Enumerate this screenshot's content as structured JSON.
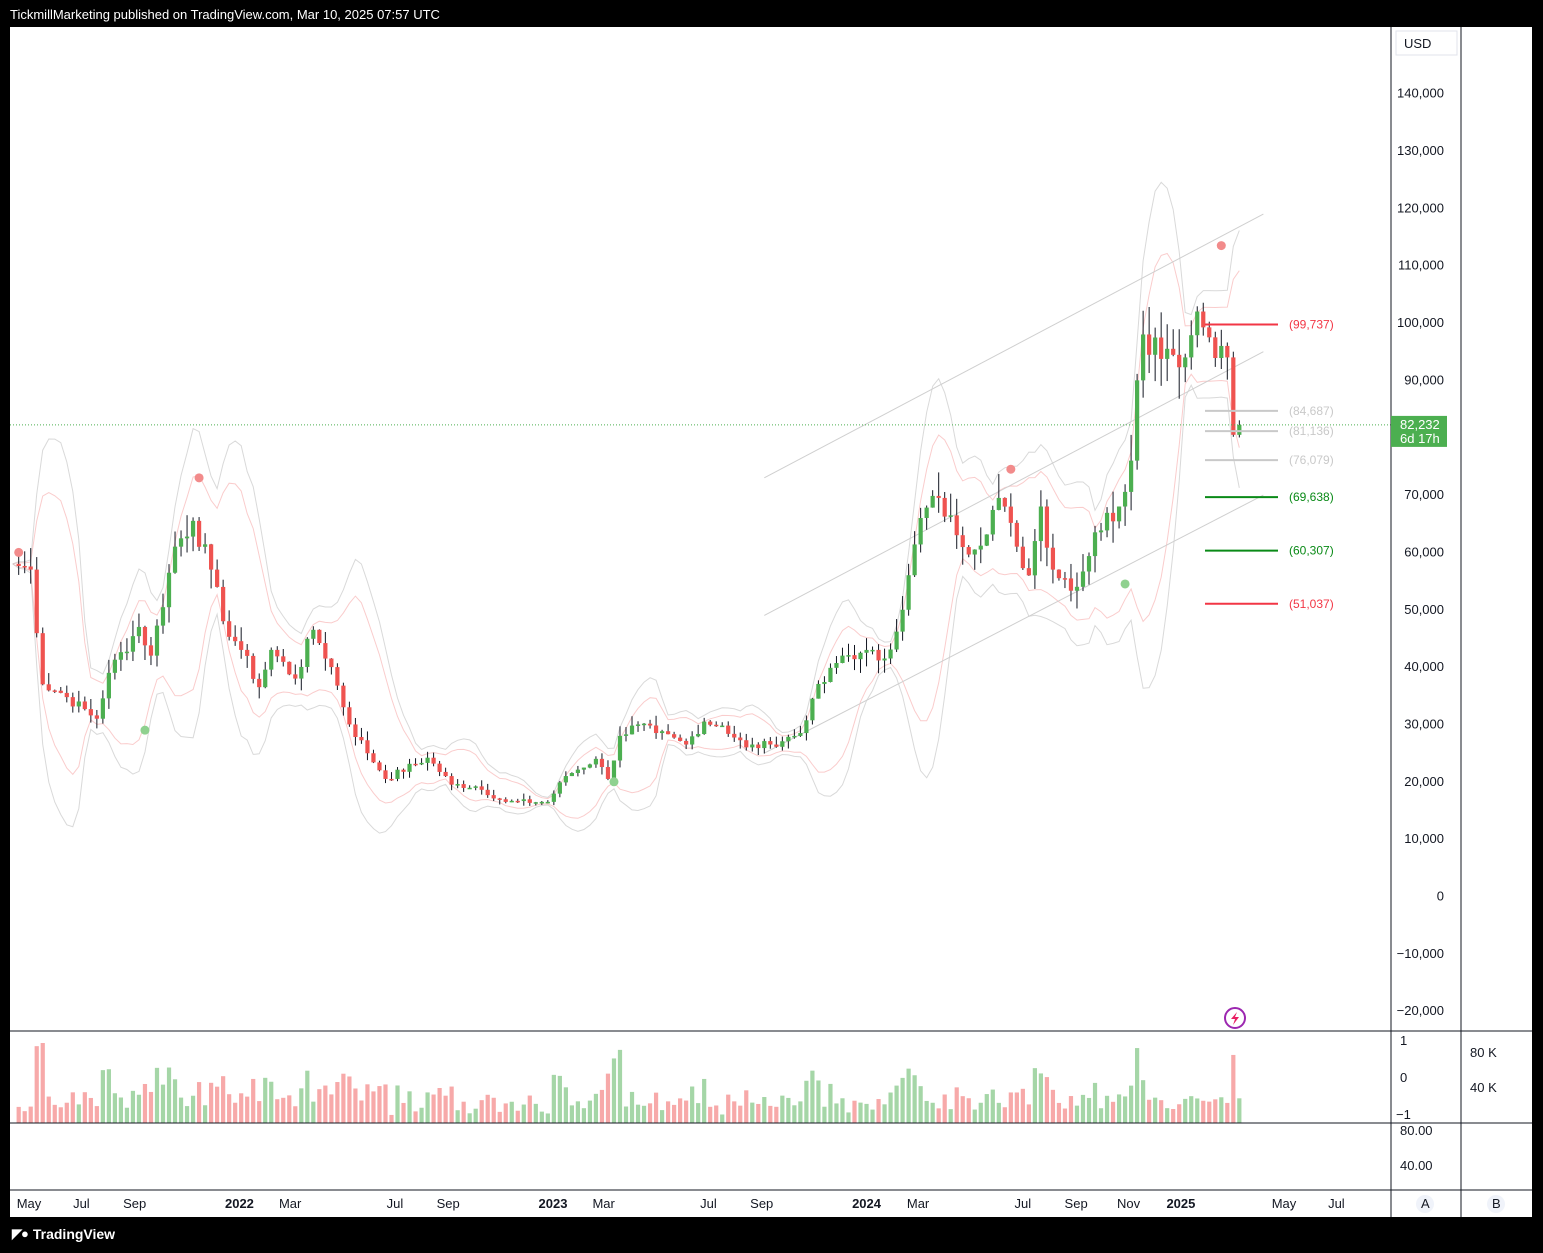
{
  "header": {
    "publish_line": "TickmillMarketing published on TradingView.com, Mar 10, 2025 07:57 UTC"
  },
  "footer": {
    "brand": "TradingView"
  },
  "currency_badge": "USD",
  "last_price": {
    "value": "82,232",
    "countdown": "6d 17h"
  },
  "scale_buttons": {
    "a": "A",
    "b": "B"
  },
  "volume_scale": {
    "left": [
      "1",
      "0",
      "−1"
    ],
    "right": [
      "80 K",
      "40 K"
    ]
  },
  "osc_scale": [
    "80.00",
    "40.00"
  ],
  "colors": {
    "up": "#4caf50",
    "down": "#ef5350",
    "level_red": "#f23645",
    "level_green": "#0a8a17",
    "level_grey": "#c9c9c9"
  },
  "chart_data": {
    "type": "candlestick",
    "symbol_currency": "USD",
    "ylim": [
      -25000,
      150000
    ],
    "y_ticks": [
      140000,
      130000,
      120000,
      110000,
      100000,
      90000,
      80000,
      70000,
      60000,
      50000,
      40000,
      30000,
      20000,
      10000,
      0,
      -10000,
      -20000
    ],
    "y_tick_labels": [
      "140,000",
      "130,000",
      "120,000",
      "110,000",
      "100,000",
      "90,000",
      "",
      "70,000",
      "60,000",
      "50,000",
      "40,000",
      "30,000",
      "20,000",
      "10,000",
      "0",
      "−10,000",
      "−20,000"
    ],
    "x_ticks": [
      {
        "label": "May",
        "date": "2021-05-01",
        "bold": false
      },
      {
        "label": "Jul",
        "date": "2021-07-01",
        "bold": false
      },
      {
        "label": "Sep",
        "date": "2021-09-01",
        "bold": false
      },
      {
        "label": "2022",
        "date": "2022-01-01",
        "bold": true
      },
      {
        "label": "Mar",
        "date": "2022-03-01",
        "bold": false
      },
      {
        "label": "Jul",
        "date": "2022-07-01",
        "bold": false
      },
      {
        "label": "Sep",
        "date": "2022-09-01",
        "bold": false
      },
      {
        "label": "2023",
        "date": "2023-01-01",
        "bold": true
      },
      {
        "label": "Mar",
        "date": "2023-03-01",
        "bold": false
      },
      {
        "label": "Jul",
        "date": "2023-07-01",
        "bold": false
      },
      {
        "label": "Sep",
        "date": "2023-09-01",
        "bold": false
      },
      {
        "label": "2024",
        "date": "2024-01-01",
        "bold": true
      },
      {
        "label": "Mar",
        "date": "2024-03-01",
        "bold": false
      },
      {
        "label": "Jul",
        "date": "2024-07-01",
        "bold": false
      },
      {
        "label": "Sep",
        "date": "2024-09-01",
        "bold": false
      },
      {
        "label": "Nov",
        "date": "2024-11-01",
        "bold": false
      },
      {
        "label": "2025",
        "date": "2025-01-01",
        "bold": true
      },
      {
        "label": "May",
        "date": "2025-05-01",
        "bold": false
      },
      {
        "label": "Jul",
        "date": "2025-07-01",
        "bold": false
      }
    ],
    "price_checkpoints": [
      [
        "2021-04-12",
        58000
      ],
      [
        "2021-05-03",
        57000
      ],
      [
        "2021-05-17",
        37000
      ],
      [
        "2021-06-07",
        35500
      ],
      [
        "2021-07-19",
        31000
      ],
      [
        "2021-08-02",
        39000
      ],
      [
        "2021-09-06",
        47000
      ],
      [
        "2021-09-20",
        42000
      ],
      [
        "2021-10-18",
        61000
      ],
      [
        "2021-11-08",
        65500
      ],
      [
        "2021-11-29",
        57000
      ],
      [
        "2021-12-13",
        48000
      ],
      [
        "2022-01-03",
        43000
      ],
      [
        "2022-01-24",
        36500
      ],
      [
        "2022-02-07",
        43000
      ],
      [
        "2022-03-07",
        38000
      ],
      [
        "2022-03-28",
        46500
      ],
      [
        "2022-04-18",
        40000
      ],
      [
        "2022-05-09",
        30000
      ],
      [
        "2022-06-13",
        22000
      ],
      [
        "2022-06-20",
        20500
      ],
      [
        "2022-08-08",
        24200
      ],
      [
        "2022-09-05",
        19500
      ],
      [
        "2022-10-03",
        19200
      ],
      [
        "2022-11-07",
        16500
      ],
      [
        "2022-12-26",
        16500
      ],
      [
        "2023-01-16",
        21000
      ],
      [
        "2023-02-20",
        24000
      ],
      [
        "2023-03-06",
        20500
      ],
      [
        "2023-03-20",
        28000
      ],
      [
        "2023-04-10",
        30000
      ],
      [
        "2023-05-01",
        28500
      ],
      [
        "2023-06-05",
        26500
      ],
      [
        "2023-06-26",
        30500
      ],
      [
        "2023-07-17",
        29800
      ],
      [
        "2023-08-14",
        26000
      ],
      [
        "2023-09-11",
        26500
      ],
      [
        "2023-10-16",
        28500
      ],
      [
        "2023-10-30",
        34500
      ],
      [
        "2023-12-04",
        42000
      ],
      [
        "2023-12-25",
        42500
      ],
      [
        "2024-01-22",
        41500
      ],
      [
        "2024-02-12",
        50000
      ],
      [
        "2024-03-04",
        66000
      ],
      [
        "2024-03-25",
        69500
      ],
      [
        "2024-04-15",
        63000
      ],
      [
        "2024-05-06",
        60500
      ],
      [
        "2024-06-03",
        69500
      ],
      [
        "2024-06-24",
        61000
      ],
      [
        "2024-07-08",
        56000
      ],
      [
        "2024-07-22",
        68000
      ],
      [
        "2024-08-05",
        57000
      ],
      [
        "2024-09-02",
        54000
      ],
      [
        "2024-09-23",
        63500
      ],
      [
        "2024-10-21",
        68000
      ],
      [
        "2024-11-04",
        76000
      ],
      [
        "2024-11-11",
        90000
      ],
      [
        "2024-11-18",
        98000
      ],
      [
        "2024-12-16",
        95500
      ],
      [
        "2025-01-06",
        94000
      ],
      [
        "2025-01-20",
        102000
      ],
      [
        "2025-02-03",
        97500
      ],
      [
        "2025-02-17",
        96000
      ],
      [
        "2025-02-24",
        94000
      ],
      [
        "2025-03-03",
        80500
      ],
      [
        "2025-03-10",
        82232
      ]
    ],
    "price_levels": [
      {
        "label": "(99,737)",
        "value": 99737,
        "color": "#f23645"
      },
      {
        "label": "(84,687)",
        "value": 84687,
        "color": "#c9c9c9"
      },
      {
        "label": "(81,136)",
        "value": 81136,
        "color": "#c9c9c9"
      },
      {
        "label": "(76,079)",
        "value": 76079,
        "color": "#c9c9c9"
      },
      {
        "label": "(69,638)",
        "value": 69638,
        "color": "#0a8a17"
      },
      {
        "label": "(60,307)",
        "value": 60307,
        "color": "#0a8a17"
      },
      {
        "label": "(51,037)",
        "value": 51037,
        "color": "#f23645"
      }
    ],
    "channel_lines": [
      {
        "from": [
          "2023-09-04",
          73000
        ],
        "to": [
          "2025-04-07",
          119000
        ]
      },
      {
        "from": [
          "2023-09-04",
          49000
        ],
        "to": [
          "2025-04-07",
          95000
        ]
      },
      {
        "from": [
          "2023-09-04",
          25000
        ],
        "to": [
          "2025-04-07",
          70000
        ]
      }
    ],
    "signal_dots": [
      {
        "date": "2021-04-19",
        "value": 60000,
        "type": "sell"
      },
      {
        "date": "2021-11-15",
        "value": 73000,
        "type": "sell"
      },
      {
        "date": "2024-06-17",
        "value": 74500,
        "type": "sell"
      },
      {
        "date": "2025-02-17",
        "value": 113500,
        "type": "sell"
      },
      {
        "date": "2021-09-13",
        "value": 29000,
        "type": "buy"
      },
      {
        "date": "2023-03-13",
        "value": 20000,
        "type": "buy"
      },
      {
        "date": "2024-10-28",
        "value": 54500,
        "type": "buy"
      }
    ]
  }
}
